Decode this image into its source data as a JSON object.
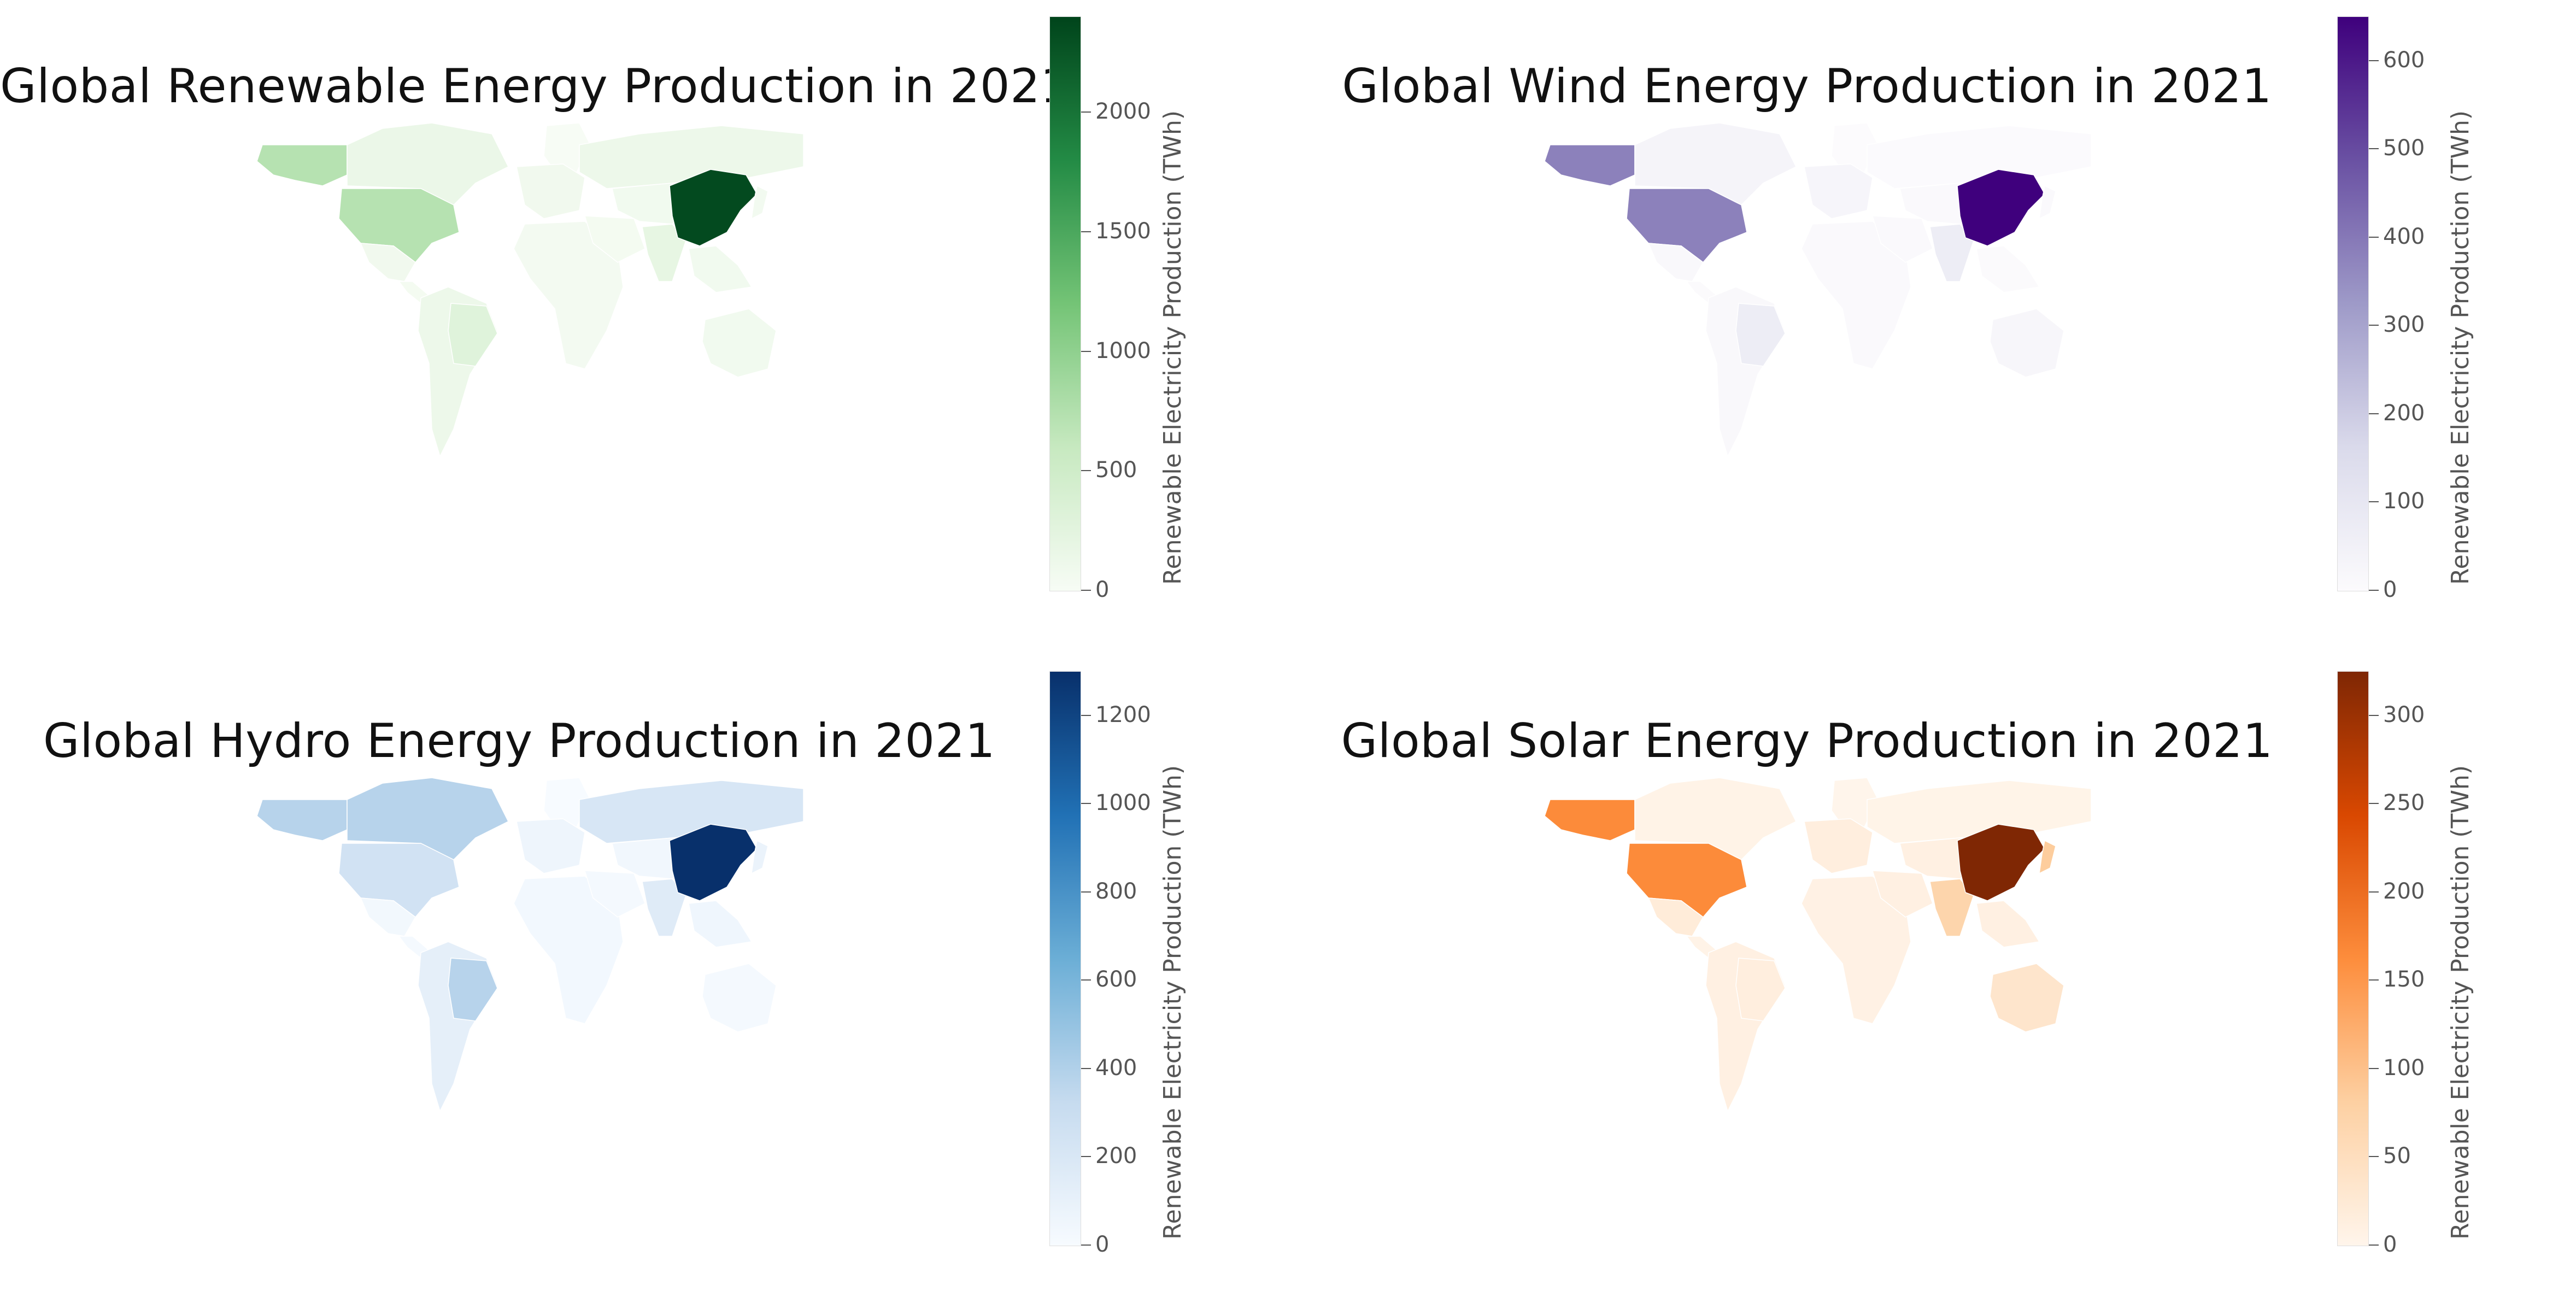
{
  "colorbar_label": "Renewable Electricity Production (TWh)",
  "panels": [
    {
      "id": "total",
      "title": "Global Renewable Energy Production in 2021",
      "colormap": [
        "#f7fcf5",
        "#c7e9c0",
        "#74c476",
        "#238b45",
        "#00441b"
      ],
      "vmax": 2400,
      "ticks": [
        0,
        500,
        1000,
        1500,
        2000
      ],
      "tick_labels": [
        "0",
        "500",
        "1000",
        "1500",
        "2000"
      ],
      "regions": {
        "alaska": 720,
        "canada": 150,
        "usa": 720,
        "mexico": 80,
        "central_america": 40,
        "south_america": 120,
        "brazil": 300,
        "greenland": 0,
        "europe": 80,
        "africa": 50,
        "middle_east": 40,
        "russia": 120,
        "central_asia": 70,
        "india": 200,
        "china": 2350,
        "japan": 60,
        "se_asia": 70,
        "australia": 70
      }
    },
    {
      "id": "wind",
      "title": "Global Wind Energy Production in 2021",
      "colormap": [
        "#fcfbfd",
        "#dadaeb",
        "#9e9ac8",
        "#6a51a3",
        "#3f007d"
      ],
      "vmax": 650,
      "ticks": [
        0,
        100,
        200,
        300,
        400,
        500,
        600
      ],
      "tick_labels": [
        "0",
        "100",
        "200",
        "300",
        "400",
        "500",
        "600"
      ],
      "regions": {
        "alaska": 380,
        "canada": 35,
        "usa": 380,
        "mexico": 15,
        "central_america": 5,
        "south_america": 15,
        "brazil": 70,
        "greenland": 0,
        "europe": 30,
        "africa": 10,
        "middle_east": 10,
        "russia": 3,
        "central_asia": 10,
        "india": 70,
        "china": 655,
        "japan": 10,
        "se_asia": 5,
        "australia": 25
      }
    },
    {
      "id": "hydro",
      "title": "Global Hydro Energy Production in 2021",
      "colormap": [
        "#f7fbff",
        "#c6dbef",
        "#6baed6",
        "#2171b5",
        "#08306b"
      ],
      "vmax": 1300,
      "ticks": [
        0,
        200,
        400,
        600,
        800,
        1000,
        1200
      ],
      "tick_labels": [
        "0",
        "200",
        "400",
        "600",
        "800",
        "1000",
        "1200"
      ],
      "regions": {
        "alaska": 380,
        "canada": 380,
        "usa": 250,
        "mexico": 35,
        "central_america": 20,
        "south_america": 120,
        "brazil": 380,
        "greenland": 0,
        "europe": 60,
        "africa": 30,
        "middle_east": 20,
        "russia": 210,
        "central_asia": 40,
        "india": 160,
        "china": 1300,
        "japan": 80,
        "se_asia": 50,
        "australia": 20
      }
    },
    {
      "id": "solar",
      "title": "Global Solar Energy Production in 2021",
      "colormap": [
        "#fff5eb",
        "#fdd0a2",
        "#fd8d3c",
        "#d94801",
        "#7f2704"
      ],
      "vmax": 325,
      "ticks": [
        0,
        50,
        100,
        150,
        200,
        250,
        300
      ],
      "tick_labels": [
        "0",
        "50",
        "100",
        "150",
        "200",
        "250",
        "300"
      ],
      "regions": {
        "alaska": 165,
        "canada": 5,
        "usa": 165,
        "mexico": 20,
        "central_america": 5,
        "south_america": 10,
        "brazil": 15,
        "greenland": 0,
        "europe": 15,
        "africa": 8,
        "middle_east": 10,
        "russia": 3,
        "central_asia": 10,
        "india": 70,
        "china": 325,
        "japan": 85,
        "se_asia": 10,
        "australia": 35
      }
    }
  ]
}
